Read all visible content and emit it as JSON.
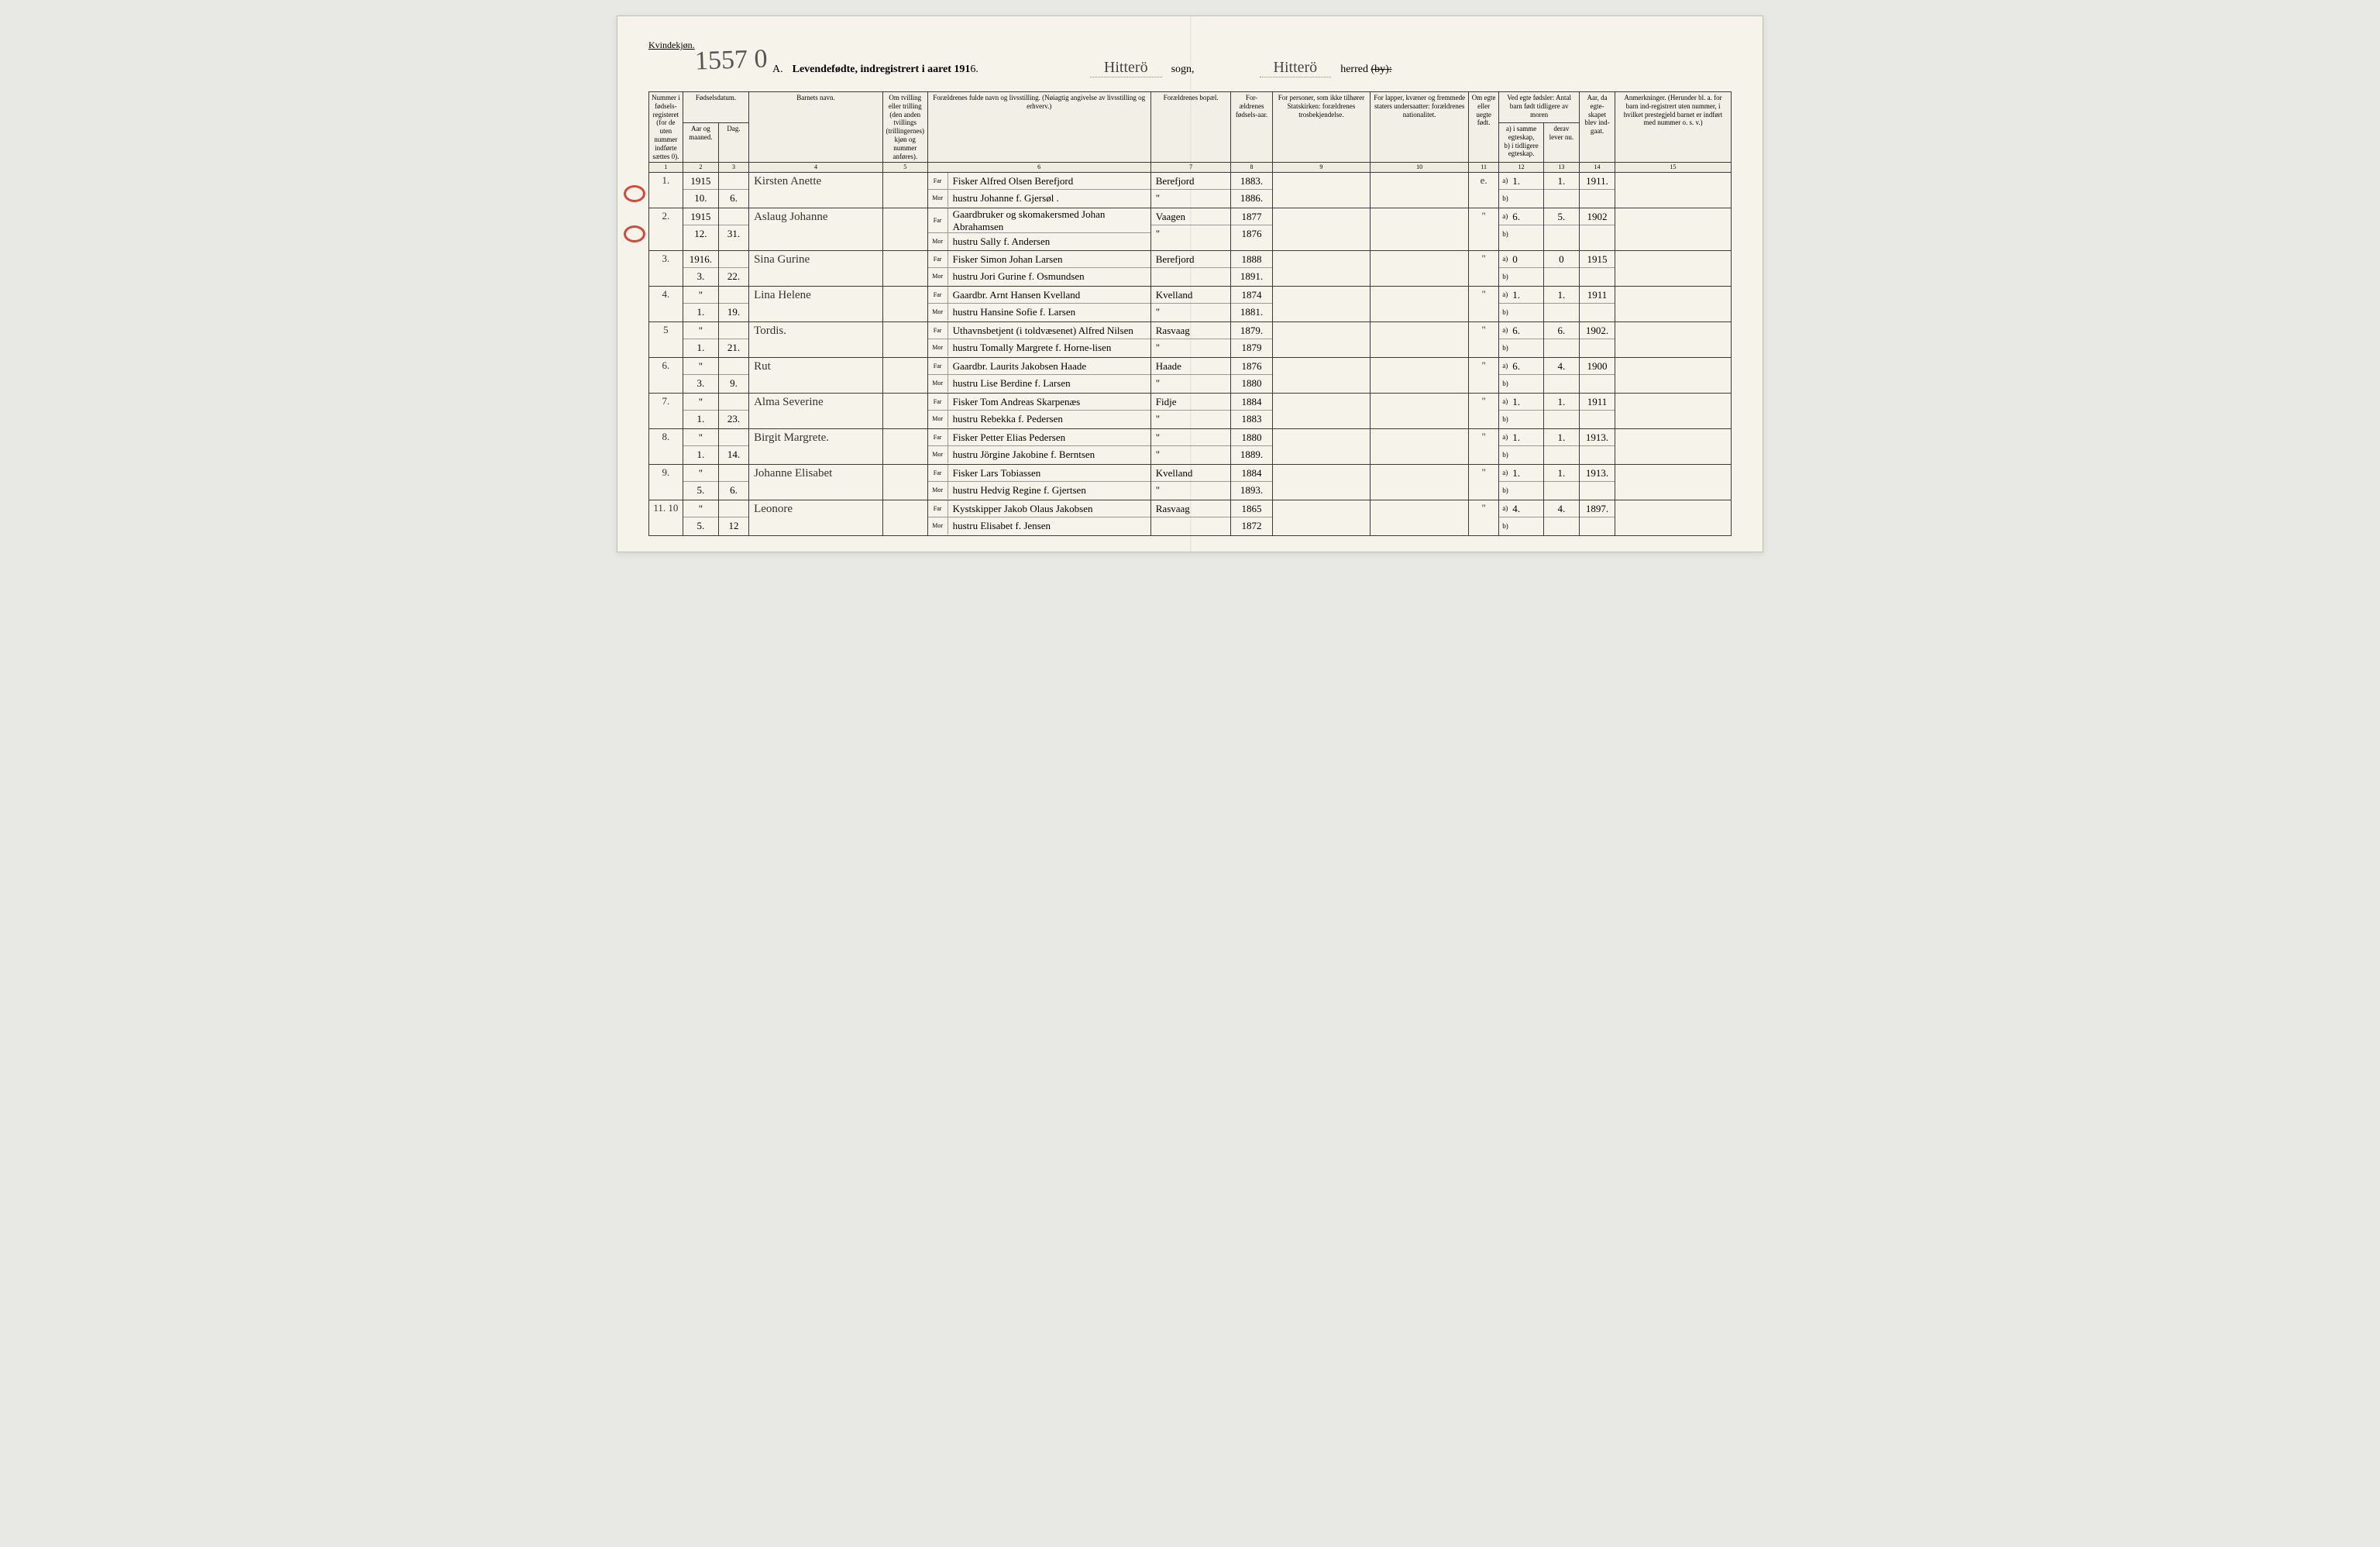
{
  "page": {
    "top_label": "Kvindekjøn.",
    "scribble": "1557 0",
    "title_prefix": "A.",
    "title_main": "Levendefødte, indregistrert i aaret 191",
    "title_year_suffix": "6.",
    "sogn_value": "Hitterö",
    "sogn_label": "sogn,",
    "herred_value": "Hitterö",
    "herred_label": "herred",
    "herred_strike": "(by):",
    "background_color": "#f5f3ea",
    "border_color": "#3a3a3a",
    "circle_color": "#d24a3a"
  },
  "headers": {
    "c1": "Nummer i fødsels-registeret (for de uten nummer indførte sættes 0).",
    "c2_group": "Fødselsdatum.",
    "c2a": "Aar og maaned.",
    "c2b": "Dag.",
    "c4": "Barnets navn.",
    "c5": "Om tvilling eller trilling (den anden tvillings (trillingernes) kjøn og nummer anføres).",
    "c6": "Forældrenes fulde navn og livsstilling. (Nøiagtig angivelse av livsstilling og erhverv.)",
    "c7": "Forældrenes bopæl.",
    "c8": "For-ældrenes fødsels-aar.",
    "c9": "For personer, som ikke tilhører Statskirken: forældrenes trosbekjendelse.",
    "c10": "For lapper, kvæner og fremmede staters undersaatter: forældrenes nationalitet.",
    "c11": "Om egte eller uegte født.",
    "c12_group": "Ved egte fødsler: Antal barn født tidligere av moren",
    "c12a": "a) i samme egteskap,",
    "c12b": "b) i tidligere egteskap.",
    "c13": "derav lever nu.",
    "c14": "Aar, da egte-skapet blev ind-gaat.",
    "c15": "Anmerkninger. (Herunder bl. a. for barn ind-registrert uten nummer, i hvilket prestegjeld barnet er indført med nummer o. s. v.)",
    "far": "Far",
    "mor": "Mor"
  },
  "colnums": [
    "1",
    "2",
    "3",
    "4",
    "5",
    "6",
    "7",
    "8",
    "9",
    "10",
    "11",
    "12",
    "13",
    "14",
    "15"
  ],
  "rows": [
    {
      "num": "1.",
      "year": "1915",
      "month": "10.",
      "day": "6.",
      "child": "Kirsten Anette",
      "far": "Fisker Alfred Olsen Berefjord",
      "mor": "hustru Johanne f. Gjersøl .",
      "res_far": "Berefjord",
      "res_mor": "\"",
      "fy_far": "1883.",
      "fy_mor": "1886.",
      "egte": "e.",
      "a12": "1.",
      "a13": "1.",
      "a14": "1911."
    },
    {
      "num": "2.",
      "year": "1915",
      "month": "12.",
      "day": "31.",
      "child": "Aslaug Johanne",
      "far": "Gaardbruker og skomakersmed Johan Abrahamsen",
      "mor": "hustru Sally f. Andersen",
      "res_far": "Vaagen",
      "res_mor": "\"",
      "fy_far": "1877",
      "fy_mor": "1876",
      "egte": "\"",
      "a12": "6.",
      "a13": "5.",
      "a14": "1902"
    },
    {
      "num": "3.",
      "year": "1916.",
      "month": "3.",
      "day": "22.",
      "child": "Sina Gurine",
      "far": "Fisker Simon Johan Larsen",
      "mor": "hustru Jori Gurine f. Osmundsen",
      "res_far": "Berefjord",
      "res_mor": "",
      "fy_far": "1888",
      "fy_mor": "1891.",
      "egte": "\"",
      "a12": "0",
      "a13": "0",
      "a14": "1915"
    },
    {
      "num": "4.",
      "year": "\"",
      "month": "1.",
      "day": "19.",
      "child": "Lina Helene",
      "far": "Gaardbr. Arnt Hansen Kvelland",
      "mor": "hustru Hansine Sofie f. Larsen",
      "res_far": "Kvelland",
      "res_mor": "\"",
      "fy_far": "1874",
      "fy_mor": "1881.",
      "egte": "\"",
      "a12": "1.",
      "a13": "1.",
      "a14": "1911"
    },
    {
      "num": "5",
      "year": "\"",
      "month": "1.",
      "day": "21.",
      "child": "Tordis.",
      "far": "Uthavnsbetjent (i toldvæsenet) Alfred Nilsen",
      "mor": "hustru Tomally Margrete f. Horne-lisen",
      "res_far": "Rasvaag",
      "res_mor": "\"",
      "fy_far": "1879.",
      "fy_mor": "1879",
      "egte": "\"",
      "a12": "6.",
      "a13": "6.",
      "a14": "1902."
    },
    {
      "num": "6.",
      "year": "\"",
      "month": "3.",
      "day": "9.",
      "child": "Rut",
      "far": "Gaardbr. Laurits Jakobsen Haade",
      "mor": "hustru Lise Berdine f. Larsen",
      "res_far": "Haade",
      "res_mor": "\"",
      "fy_far": "1876",
      "fy_mor": "1880",
      "egte": "\"",
      "a12": "6.",
      "a13": "4.",
      "a14": "1900"
    },
    {
      "num": "7.",
      "year": "\"",
      "month": "1.",
      "day": "23.",
      "child": "Alma Severine",
      "far": "Fisker Tom Andreas Skarpenæs",
      "mor": "hustru Rebekka f. Pedersen",
      "res_far": "Fidje",
      "res_mor": "\"",
      "fy_far": "1884",
      "fy_mor": "1883",
      "egte": "\"",
      "a12": "1.",
      "a13": "1.",
      "a14": "1911"
    },
    {
      "num": "8.",
      "year": "\"",
      "month": "1.",
      "day": "14.",
      "child": "Birgit Margrete.",
      "far": "Fisker Petter Elias Pedersen",
      "mor": "hustru Jörgine Jakobine f. Berntsen",
      "res_far": "\"",
      "res_mor": "\"",
      "fy_far": "1880",
      "fy_mor": "1889.",
      "egte": "\"",
      "a12": "1.",
      "a13": "1.",
      "a14": "1913."
    },
    {
      "num": "9.",
      "year": "\"",
      "month": "5.",
      "day": "6.",
      "child": "Johanne Elisabet",
      "far": "Fisker Lars Tobiassen",
      "mor": "hustru Hedvig Regine f. Gjertsen",
      "res_far": "Kvelland",
      "res_mor": "\"",
      "fy_far": "1884",
      "fy_mor": "1893.",
      "egte": "\"",
      "a12": "1.",
      "a13": "1.",
      "a14": "1913."
    },
    {
      "num": "11.\n10",
      "year": "\"",
      "month": "5.",
      "day": "12",
      "child": "Leonore",
      "far": "Kystskipper Jakob Olaus Jakobsen",
      "mor": "hustru Elisabet f. Jensen",
      "res_far": "Rasvaag",
      "res_mor": "",
      "fy_far": "1865",
      "fy_mor": "1872",
      "egte": "\"",
      "a12": "4.",
      "a13": "4.",
      "a14": "1897."
    }
  ]
}
